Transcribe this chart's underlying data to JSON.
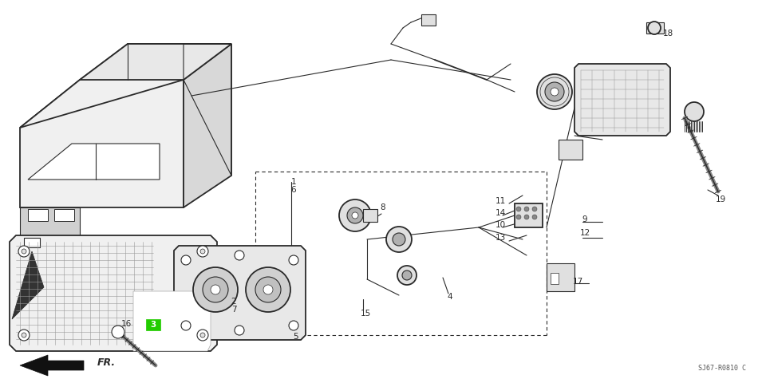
{
  "bg_color": "#ffffff",
  "line_color": "#2a2a2a",
  "green_color": "#22cc00",
  "title_text": "SJ67-R0810 C",
  "grid_color": "#999999",
  "gray_fill": "#e0e0e0",
  "light_gray": "#f0f0f0",
  "lw_main": 1.3,
  "lw_thin": 0.8,
  "lw_thick": 2.0,
  "font_size": 7.5,
  "fig_w": 9.55,
  "fig_h": 4.75,
  "dpi": 100
}
